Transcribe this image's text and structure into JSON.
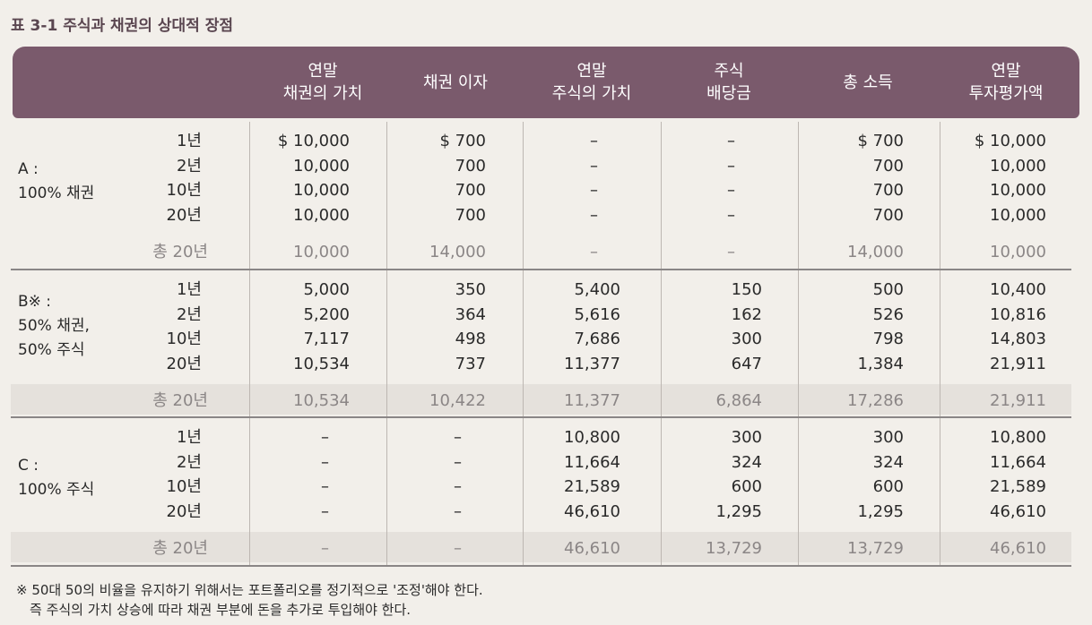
{
  "caption": "표 3-1 주식과 채권의 상대적 장점",
  "columns": [
    "연말\n채권의 가치",
    "채권 이자",
    "연말\n주식의 가치",
    "주식\n배당금",
    "총 소득",
    "연말\n투자평가액"
  ],
  "groups": [
    {
      "label": "A :\n100% 채권",
      "rows": [
        {
          "period": "1년",
          "values": [
            "$ 10,000",
            "$ 700",
            "–",
            "–",
            "$ 700",
            "$ 10,000"
          ]
        },
        {
          "period": "2년",
          "values": [
            "10,000",
            "700",
            "–",
            "–",
            "700",
            "10,000"
          ]
        },
        {
          "period": "10년",
          "values": [
            "10,000",
            "700",
            "–",
            "–",
            "700",
            "10,000"
          ]
        },
        {
          "period": "20년",
          "values": [
            "10,000",
            "700",
            "–",
            "–",
            "700",
            "10,000"
          ]
        }
      ],
      "total": {
        "period": "총 20년",
        "values": [
          "10,000",
          "14,000",
          "–",
          "–",
          "14,000",
          "10,000"
        ]
      }
    },
    {
      "label": "B※ :\n50% 채권,\n50% 주식",
      "rows": [
        {
          "period": "1년",
          "values": [
            "5,000",
            "350",
            "5,400",
            "150",
            "500",
            "10,400"
          ]
        },
        {
          "period": "2년",
          "values": [
            "5,200",
            "364",
            "5,616",
            "162",
            "526",
            "10,816"
          ]
        },
        {
          "period": "10년",
          "values": [
            "7,117",
            "498",
            "7,686",
            "300",
            "798",
            "14,803"
          ]
        },
        {
          "period": "20년",
          "values": [
            "10,534",
            "737",
            "11,377",
            "647",
            "1,384",
            "21,911"
          ]
        }
      ],
      "total": {
        "period": "총 20년",
        "values": [
          "10,534",
          "10,422",
          "11,377",
          "6,864",
          "17,286",
          "21,911"
        ]
      }
    },
    {
      "label": "C :\n100% 주식",
      "rows": [
        {
          "period": "1년",
          "values": [
            "–",
            "–",
            "10,800",
            "300",
            "300",
            "10,800"
          ]
        },
        {
          "period": "2년",
          "values": [
            "–",
            "–",
            "11,664",
            "324",
            "324",
            "11,664"
          ]
        },
        {
          "period": "10년",
          "values": [
            "–",
            "–",
            "21,589",
            "600",
            "600",
            "21,589"
          ]
        },
        {
          "period": "20년",
          "values": [
            "–",
            "–",
            "46,610",
            "1,295",
            "1,295",
            "46,610"
          ]
        }
      ],
      "total": {
        "period": "총 20년",
        "values": [
          "–",
          "–",
          "46,610",
          "13,729",
          "13,729",
          "46,610"
        ]
      }
    }
  ],
  "footnote": [
    "※ 50대 50의 비율을 유지하기 위해서는 포트폴리오를 정기적으로 '조정'해야 한다.",
    "　즉 주식의 가치 상승에 따라 채권 부분에 돈을 추가로 투입해야 한다."
  ]
}
